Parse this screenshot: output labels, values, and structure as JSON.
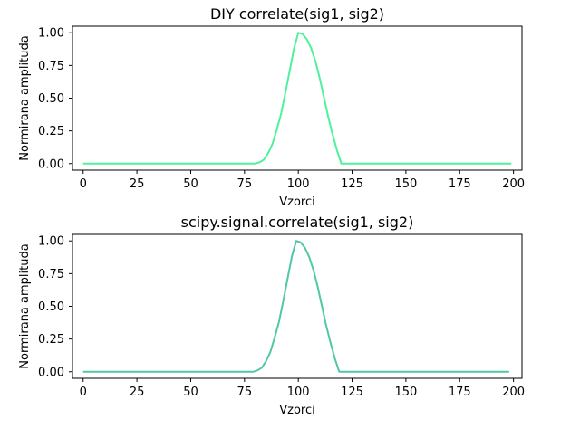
{
  "chart_data": [
    {
      "type": "line",
      "title": "DIY correlate(sig1, sig2)",
      "xlabel": "Vzorci",
      "ylabel": "Normirana amplituda",
      "xlim": [
        -4.95,
        203.95
      ],
      "ylim": [
        -0.05,
        1.05
      ],
      "xticks": [
        "0",
        "25",
        "50",
        "75",
        "100",
        "125",
        "150",
        "175",
        "200"
      ],
      "yticks": [
        "0.00",
        "0.25",
        "0.50",
        "0.75",
        "1.00"
      ],
      "grid": false,
      "series": [
        {
          "color": "#4ef29c",
          "x": [
            0,
            80,
            82,
            84,
            86,
            88,
            90,
            92,
            94,
            96,
            98,
            100,
            102,
            104,
            106,
            108,
            110,
            112,
            114,
            116,
            118,
            120,
            199
          ],
          "y": [
            0,
            0,
            0.01,
            0.03,
            0.08,
            0.15,
            0.26,
            0.38,
            0.54,
            0.71,
            0.88,
            1.0,
            0.99,
            0.95,
            0.88,
            0.78,
            0.65,
            0.5,
            0.35,
            0.22,
            0.1,
            0,
            0
          ]
        }
      ]
    },
    {
      "type": "line",
      "title": "scipy.signal.correlate(sig1, sig2)",
      "xlabel": "Vzorci",
      "ylabel": "Normirana amplituda",
      "xlim": [
        -4.95,
        203.95
      ],
      "ylim": [
        -0.05,
        1.05
      ],
      "xticks": [
        "0",
        "25",
        "50",
        "75",
        "100",
        "125",
        "150",
        "175",
        "200"
      ],
      "yticks": [
        "0.00",
        "0.25",
        "0.50",
        "0.75",
        "1.00"
      ],
      "grid": false,
      "series": [
        {
          "color": "#50c8a8",
          "x": [
            0,
            79,
            81,
            83,
            85,
            87,
            89,
            91,
            93,
            95,
            97,
            99,
            101,
            103,
            105,
            107,
            109,
            111,
            113,
            115,
            117,
            119,
            198
          ],
          "y": [
            0,
            0,
            0.01,
            0.03,
            0.08,
            0.15,
            0.26,
            0.38,
            0.54,
            0.71,
            0.88,
            1.0,
            0.99,
            0.95,
            0.88,
            0.78,
            0.65,
            0.5,
            0.35,
            0.22,
            0.1,
            0,
            0
          ]
        }
      ]
    }
  ]
}
